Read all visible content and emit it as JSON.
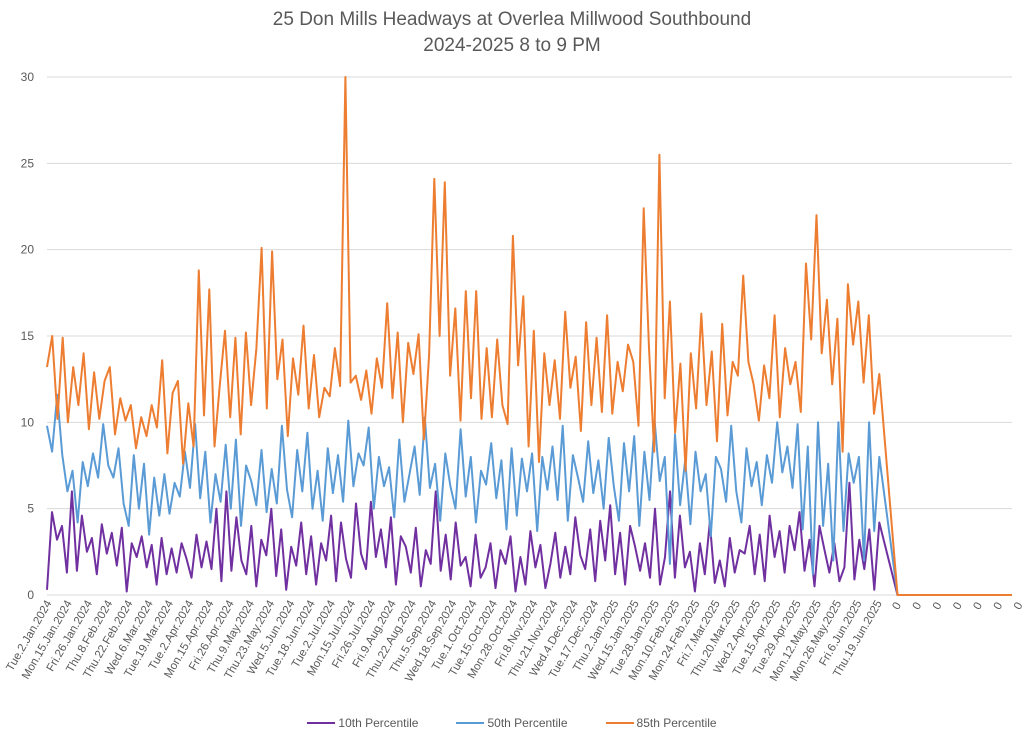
{
  "chart_data": {
    "type": "line",
    "title": "25 Don Mills Headways at Overlea Millwood Southbound",
    "subtitle": "2024-2025 8 to 9 PM",
    "xlabel": "",
    "ylabel": "",
    "ylim": [
      0,
      30
    ],
    "yticks": [
      0,
      5,
      10,
      15,
      20,
      25,
      30
    ],
    "grid": true,
    "legend_position": "bottom",
    "categories": [
      "Tue.2.Jan.2024",
      "Mon.15.Jan.2024",
      "Fri.26.Jan.2024",
      "Thu.8.Feb.2024",
      "Thu.22.Feb.2024",
      "Wed.6.Mar.2024",
      "Tue.19.Mar.2024",
      "Tue.2.Apr.2024",
      "Mon.15.Apr.2024",
      "Fri.26.Apr.2024",
      "Thu.9.May.2024",
      "Thu.23.May.2024",
      "Wed.5.Jun.2024",
      "Tue.18.Jun.2024",
      "Tue.2.Jul.2024",
      "Mon.15.Jul.2024",
      "Fri.26.Jul.2024",
      "Fri.9.Aug.2024",
      "Thu.22.Aug.2024",
      "Thu.5.Sep.2024",
      "Wed.18.Sep.2024",
      "Tue.1.Oct.2024",
      "Tue.15.Oct.2024",
      "Mon.28.Oct.2024",
      "Fri.8.Nov.2024",
      "Thu.21.Nov.2024",
      "Wed.4.Dec.2024",
      "Tue.17.Dec.2024",
      "Thu.2.Jan.2025",
      "Wed.15.Jan.2025",
      "Tue.28.Jan.2025",
      "Mon.10.Feb.2025",
      "Mon.24.Feb.2025",
      "Fri.7.Mar.2025",
      "Thu.20.Mar.2025",
      "Wed.2.Apr.2025",
      "Tue.15.Apr.2025",
      "Tue.29.Apr.2025",
      "Mon.12.May.2025",
      "Mon.26.May.2025",
      "Fri.6.Jun.2025",
      "Thu.19.Jun.2025",
      "0",
      "0",
      "0",
      "0",
      "0",
      "0",
      "0"
    ],
    "points_per_category": 4,
    "series": [
      {
        "name": "10th Percentile",
        "color": "#7030A0",
        "values": [
          0.3,
          4.8,
          3.2,
          4.0,
          1.3,
          6.0,
          1.4,
          4.6,
          2.5,
          3.3,
          1.2,
          4.1,
          2.4,
          3.6,
          1.7,
          3.9,
          0.2,
          3.0,
          2.2,
          3.4,
          1.6,
          2.9,
          0.6,
          3.3,
          1.2,
          2.7,
          1.3,
          3.0,
          2.1,
          1.0,
          3.5,
          1.6,
          3.1,
          1.5,
          5.0,
          0.8,
          6.0,
          1.4,
          4.5,
          2.0,
          1.2,
          4.0,
          0.5,
          3.2,
          2.3,
          5.0,
          1.1,
          3.8,
          0.3,
          2.8,
          1.7,
          4.2,
          1.2,
          3.4,
          0.6,
          3.0,
          2.0,
          4.6,
          0.8,
          4.2,
          2.1,
          1.0,
          5.3,
          2.4,
          1.5,
          5.4,
          2.2,
          3.8,
          1.6,
          4.5,
          0.6,
          3.4,
          2.8,
          1.3,
          3.9,
          0.5,
          2.6,
          1.8,
          6.0,
          1.4,
          3.5,
          0.9,
          4.2,
          1.7,
          2.2,
          0.5,
          3.5,
          1.0,
          1.6,
          3.0,
          0.4,
          2.6,
          1.8,
          3.4,
          0.2,
          2.2,
          0.6,
          3.7,
          1.6,
          2.9,
          0.4,
          1.8,
          3.6,
          1.0,
          2.8,
          1.2,
          4.5,
          2.3,
          1.5,
          3.8,
          0.8,
          4.3,
          2.0,
          5.2,
          1.2,
          3.6,
          0.6,
          4.0,
          2.8,
          1.4,
          3.0,
          1.0,
          5.0,
          0.6,
          2.2,
          6.0,
          1.0,
          4.6,
          1.6,
          2.5,
          0.2,
          3.0,
          1.2,
          4.2,
          0.7,
          2.0,
          0.5,
          3.3,
          1.3,
          2.6,
          2.4,
          4.0,
          1.2,
          3.5,
          0.8,
          4.6,
          2.2,
          3.7,
          1.3,
          4.0,
          2.6,
          4.8,
          1.4,
          3.2,
          0.5,
          4.0,
          2.6,
          1.3,
          3.0,
          0.8,
          1.6,
          6.5,
          0.9,
          3.2,
          1.5,
          3.8,
          0.3,
          4.2,
          0,
          0,
          0,
          0,
          0,
          0,
          0
        ]
      },
      {
        "name": "50th Percentile",
        "color": "#5B9BD5",
        "values": [
          9.8,
          8.3,
          11.6,
          8.1,
          6.0,
          7.2,
          4.2,
          7.7,
          6.3,
          8.2,
          6.8,
          9.9,
          7.5,
          6.8,
          8.5,
          5.3,
          4.0,
          8.1,
          5.0,
          7.6,
          3.5,
          6.8,
          4.6,
          7.0,
          4.7,
          6.5,
          5.7,
          8.3,
          6.2,
          9.9,
          5.6,
          8.3,
          4.2,
          7.0,
          5.4,
          8.7,
          5.0,
          9.0,
          4.0,
          7.5,
          6.6,
          5.2,
          8.4,
          4.8,
          7.3,
          5.3,
          9.8,
          6.1,
          4.5,
          8.4,
          6.0,
          9.4,
          5.0,
          7.2,
          4.3,
          8.5,
          5.9,
          8.1,
          5.4,
          10.1,
          6.3,
          8.2,
          7.5,
          9.7,
          5.0,
          8.0,
          6.3,
          7.4,
          4.5,
          9.0,
          5.4,
          7.0,
          8.6,
          5.8,
          10.3,
          6.2,
          7.6,
          4.3,
          8.2,
          6.3,
          5.0,
          9.6,
          5.7,
          8.0,
          4.2,
          7.2,
          6.4,
          8.8,
          5.6,
          7.8,
          3.8,
          8.5,
          4.6,
          7.9,
          6.0,
          8.2,
          3.7,
          8.0,
          6.1,
          8.6,
          5.5,
          9.8,
          4.3,
          8.1,
          6.8,
          5.4,
          8.9,
          5.9,
          7.8,
          5.0,
          9.1,
          6.3,
          4.3,
          8.8,
          6.0,
          9.2,
          4.0,
          8.3,
          5.5,
          10.1,
          6.6,
          8.0,
          1.8,
          9.3,
          5.2,
          7.8,
          4.1,
          8.3,
          6.0,
          7.0,
          3.4,
          8.0,
          7.3,
          5.4,
          9.8,
          6.0,
          4.2,
          8.5,
          6.3,
          7.7,
          5.2,
          8.1,
          6.5,
          10.0,
          7.1,
          8.6,
          6.2,
          9.9,
          3.8,
          8.6,
          1.2,
          10.0,
          4.0,
          7.6,
          2.0,
          10.0,
          3.7,
          8.2,
          6.5,
          8.0,
          2.0,
          10.0,
          3.7,
          8.0,
          0,
          0,
          0,
          0,
          0,
          0,
          0
        ]
      },
      {
        "name": "85th Percentile",
        "color": "#ED7D31",
        "values": [
          13.2,
          15.0,
          10.2,
          14.9,
          10.0,
          13.2,
          11.0,
          14.0,
          9.6,
          12.9,
          10.2,
          12.4,
          13.2,
          9.3,
          11.4,
          10.1,
          11.0,
          8.5,
          10.3,
          9.2,
          11.0,
          9.7,
          13.6,
          8.2,
          11.7,
          12.4,
          7.6,
          11.1,
          8.6,
          18.8,
          10.4,
          17.7,
          8.6,
          12.1,
          15.3,
          10.3,
          14.9,
          9.3,
          15.2,
          11.0,
          14.3,
          20.1,
          10.8,
          19.9,
          12.5,
          14.8,
          9.2,
          13.7,
          11.6,
          15.6,
          10.8,
          13.9,
          10.3,
          12.0,
          11.5,
          14.3,
          12.1,
          30.0,
          12.3,
          12.7,
          11.3,
          13.0,
          10.5,
          13.7,
          12.0,
          16.9,
          11.4,
          15.2,
          10.0,
          14.6,
          12.8,
          15.1,
          9.0,
          13.9,
          24.1,
          15.0,
          23.9,
          12.7,
          16.6,
          10.1,
          17.6,
          11.4,
          17.6,
          10.2,
          14.3,
          10.3,
          14.8,
          11.0,
          9.9,
          20.8,
          13.3,
          17.3,
          8.6,
          15.3,
          7.7,
          14.0,
          11.0,
          13.6,
          10.2,
          16.4,
          12.0,
          13.8,
          9.5,
          15.8,
          11.0,
          14.9,
          10.6,
          16.2,
          10.5,
          13.5,
          11.8,
          14.5,
          13.5,
          9.8,
          22.4,
          14.3,
          8.3,
          25.5,
          11.4,
          17.0,
          9.4,
          13.4,
          7.2,
          14.0,
          10.8,
          16.3,
          11.0,
          14.1,
          8.9,
          15.7,
          10.4,
          13.5,
          12.7,
          18.5,
          13.5,
          12.2,
          10.1,
          13.3,
          11.4,
          16.2,
          10.3,
          14.3,
          12.2,
          13.5,
          10.6,
          19.2,
          14.8,
          22.0,
          14.0,
          17.1,
          12.2,
          16.0,
          8.3,
          18.0,
          14.5,
          17.0,
          12.3,
          16.2,
          10.5,
          12.8,
          0,
          0,
          0,
          0,
          0,
          0,
          0
        ]
      }
    ]
  },
  "legend": [
    {
      "label": "10th Percentile",
      "color": "#7030A0"
    },
    {
      "label": "50th Percentile",
      "color": "#5B9BD5"
    },
    {
      "label": "85th Percentile",
      "color": "#ED7D31"
    }
  ]
}
